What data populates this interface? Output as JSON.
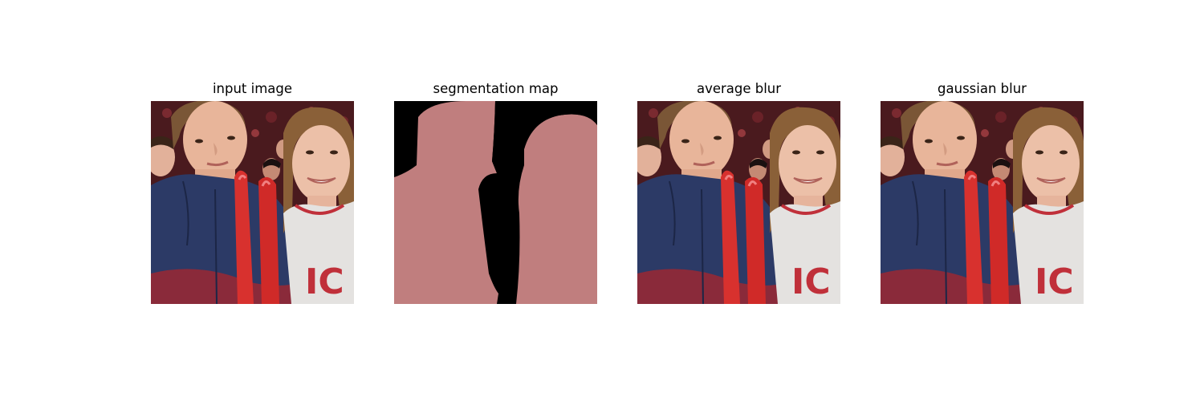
{
  "figure": {
    "panels": [
      {
        "title": "input image"
      },
      {
        "title": "segmentation map"
      },
      {
        "title": "average blur"
      },
      {
        "title": "gaussian blur"
      }
    ]
  },
  "colors": {
    "mask": "#c07e7e",
    "background_mask": "#000000",
    "crowd": "#4a1a1e",
    "jacket": "#2c3a66",
    "jacket_red": "#8a2a3a",
    "balloon": "#d8312e",
    "shirt": "#e4e2e0",
    "skin": "#e8b59a",
    "hair": "#7a5636"
  }
}
